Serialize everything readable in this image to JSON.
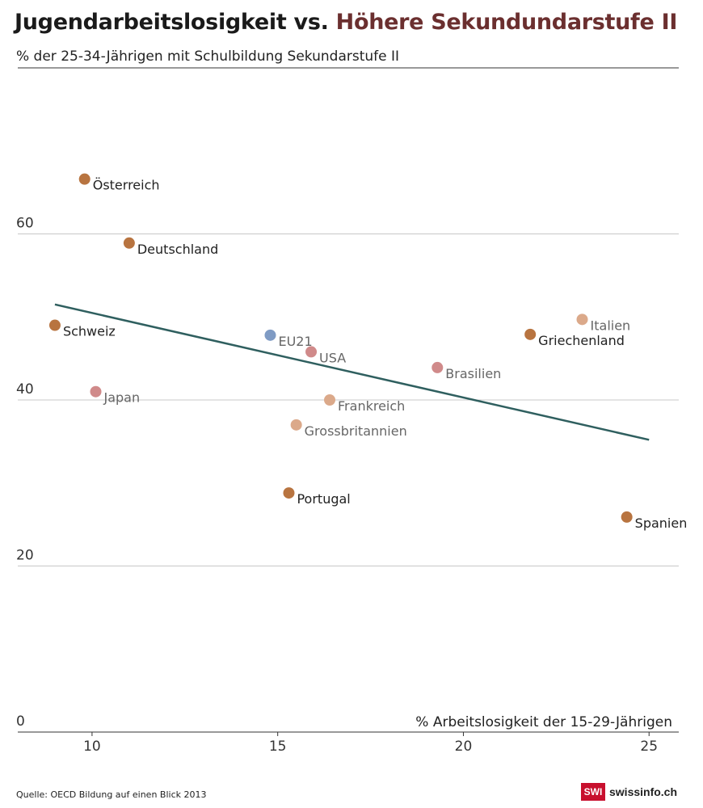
{
  "header": {
    "title_main": "Jugendarbeitslosigkeit vs. ",
    "title_highlight": "Höhere Sekundundarstufe II",
    "subtitle": "% der 25-34-Jährigen mit Schulbildung Sekundarstufe II"
  },
  "source": "Quelle: OECD Bildung auf einen Blick 2013",
  "logo": {
    "badge": "SWI",
    "text": "swissinfo.ch",
    "badge_color": "#c8102e"
  },
  "colors": {
    "trend": "#2f5f5f",
    "grid": "#c8c8c8",
    "axis": "#333333",
    "title_highlight": "#6b2f2f"
  },
  "chart_data": {
    "type": "scatter",
    "xlabel": "% Arbeitslosigkeit der 15-29-Jährigen",
    "ylabel": "% der 25-34-Jährigen mit Schulbildung Sekundarstufe II",
    "xlim": [
      8,
      25.8
    ],
    "ylim": [
      0,
      80
    ],
    "xticks": [
      10,
      15,
      20,
      25
    ],
    "yticks": [
      0,
      20,
      40,
      60
    ],
    "grid": "horizontal",
    "trendline": {
      "x": [
        9,
        25
      ],
      "y": [
        51.5,
        35.2
      ]
    },
    "points": [
      {
        "label": "Österreich",
        "x": 9.8,
        "y": 66.6,
        "color": "#b87440",
        "label_color": "#222222"
      },
      {
        "label": "Deutschland",
        "x": 11.0,
        "y": 58.9,
        "color": "#b87440",
        "label_color": "#222222"
      },
      {
        "label": "Schweiz",
        "x": 9.0,
        "y": 49.0,
        "color": "#b87440",
        "label_color": "#222222"
      },
      {
        "label": "Japan",
        "x": 10.1,
        "y": 41.0,
        "color": "#d08a8a",
        "label_color": "#666666"
      },
      {
        "label": "EU21",
        "x": 14.8,
        "y": 47.8,
        "color": "#7f9bc4",
        "label_color": "#666666"
      },
      {
        "label": "USA",
        "x": 15.9,
        "y": 45.8,
        "color": "#d08a8a",
        "label_color": "#666666"
      },
      {
        "label": "Frankreich",
        "x": 16.4,
        "y": 40.0,
        "color": "#dba98a",
        "label_color": "#666666"
      },
      {
        "label": "Grossbritannien",
        "x": 15.5,
        "y": 37.0,
        "color": "#dba98a",
        "label_color": "#666666"
      },
      {
        "label": "Portugal",
        "x": 15.3,
        "y": 28.8,
        "color": "#b87440",
        "label_color": "#222222"
      },
      {
        "label": "Brasilien",
        "x": 19.3,
        "y": 43.9,
        "color": "#d08a8a",
        "label_color": "#666666"
      },
      {
        "label": "Griechenland",
        "x": 21.8,
        "y": 47.9,
        "color": "#b87440",
        "label_color": "#222222"
      },
      {
        "label": "Italien",
        "x": 23.2,
        "y": 49.7,
        "color": "#dba98a",
        "label_color": "#666666"
      },
      {
        "label": "Spanien",
        "x": 24.4,
        "y": 25.9,
        "color": "#b87440",
        "label_color": "#222222"
      }
    ]
  }
}
